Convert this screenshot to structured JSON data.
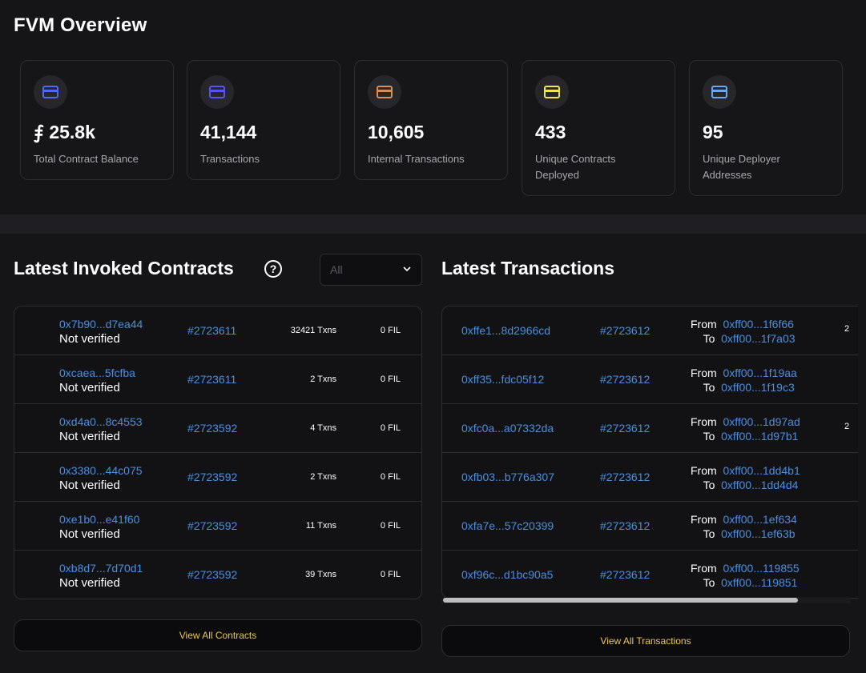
{
  "page_title": "FVM Overview",
  "stats": [
    {
      "value": "⨎ 25.8k",
      "label": "Total Contract Balance",
      "icon": "card-icon",
      "color": "#4b6cf0"
    },
    {
      "value": "41,144",
      "label": "Transactions",
      "icon": "card-icon",
      "color": "#5b53f0"
    },
    {
      "value": "10,605",
      "label": "Internal Transactions",
      "icon": "card-icon",
      "color": "#d88e5a"
    },
    {
      "value": "433",
      "label": "Unique Contracts Deployed",
      "icon": "card-icon",
      "color": "#f2e25a"
    },
    {
      "value": "95",
      "label": "Unique Deployer Addresses",
      "icon": "card-icon",
      "color": "#6aa8f2"
    }
  ],
  "contracts": {
    "title": "Latest Invoked Contracts",
    "help_icon": "question-circle-icon",
    "filter": {
      "selected": "All",
      "icon": "chevron-down-icon"
    },
    "rows": [
      {
        "address": "0x7b90...d7ea44",
        "status": "Not verified",
        "block": "#2723611",
        "txns": "32421 Txns",
        "balance": "0 FIL"
      },
      {
        "address": "0xcaea...5fcfba",
        "status": "Not verified",
        "block": "#2723611",
        "txns": "2 Txns",
        "balance": "0 FIL"
      },
      {
        "address": "0xd4a0...8c4553",
        "status": "Not verified",
        "block": "#2723592",
        "txns": "4 Txns",
        "balance": "0 FIL"
      },
      {
        "address": "0x3380...44c075",
        "status": "Not verified",
        "block": "#2723592",
        "txns": "2 Txns",
        "balance": "0 FIL"
      },
      {
        "address": "0xe1b0...e41f60",
        "status": "Not verified",
        "block": "#2723592",
        "txns": "11 Txns",
        "balance": "0 FIL"
      },
      {
        "address": "0xb8d7...7d70d1",
        "status": "Not verified",
        "block": "#2723592",
        "txns": "39 Txns",
        "balance": "0 FIL"
      }
    ],
    "view_all": "View All Contracts"
  },
  "transactions": {
    "title": "Latest Transactions",
    "from_label": "From",
    "to_label": "To",
    "rows": [
      {
        "hash": "0xffe1...8d2966cd",
        "block": "#2723612",
        "from": "0xff00...1f6f66",
        "to": "0xff00...1f7a03",
        "extra": "2"
      },
      {
        "hash": "0xff35...fdc05f12",
        "block": "#2723612",
        "from": "0xff00...1f19aa",
        "to": "0xff00...1f19c3",
        "extra": ""
      },
      {
        "hash": "0xfc0a...a07332da",
        "block": "#2723612",
        "from": "0xff00...1d97ad",
        "to": "0xff00...1d97b1",
        "extra": "2"
      },
      {
        "hash": "0xfb03...b776a307",
        "block": "#2723612",
        "from": "0xff00...1dd4b1",
        "to": "0xff00...1dd4d4",
        "extra": ""
      },
      {
        "hash": "0xfa7e...57c20399",
        "block": "#2723612",
        "from": "0xff00...1ef634",
        "to": "0xff00...1ef63b",
        "extra": ""
      },
      {
        "hash": "0xf96c...d1bc90a5",
        "block": "#2723612",
        "from": "0xff00...119855",
        "to": "0xff00...119851",
        "extra": ""
      }
    ],
    "view_all": "View All Transactions"
  }
}
